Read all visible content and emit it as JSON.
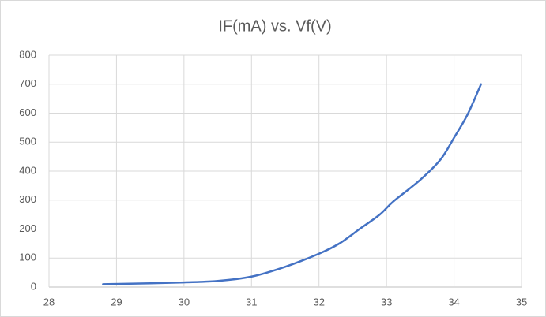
{
  "chart_data": {
    "type": "line",
    "title": "IF(mA) vs. Vf(V)",
    "x": [
      28.8,
      29.5,
      30,
      30.5,
      31,
      31.5,
      32,
      32.3,
      32.6,
      32.9,
      33.1,
      33.5,
      33.8,
      34,
      34.2,
      34.4
    ],
    "series": [
      {
        "name": "IF(mA)",
        "color": "#4472c4",
        "values": [
          10,
          13,
          16,
          21,
          36,
          70,
          115,
          150,
          200,
          250,
          295,
          370,
          440,
          515,
          595,
          700
        ]
      }
    ],
    "xlim": [
      28,
      35
    ],
    "xticks": [
      28,
      29,
      30,
      31,
      32,
      33,
      34,
      35
    ],
    "ylim": [
      0,
      800
    ],
    "yticks": [
      0,
      100,
      200,
      300,
      400,
      500,
      600,
      700,
      800
    ],
    "grid": true,
    "smooth": true
  }
}
